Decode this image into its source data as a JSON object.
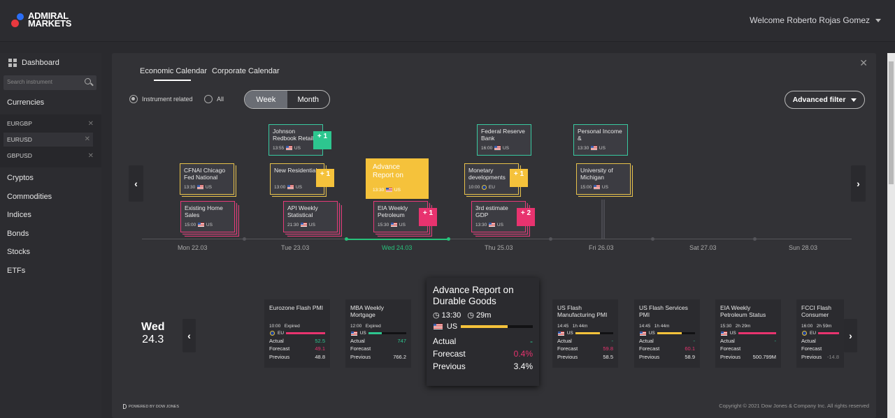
{
  "header": {
    "logo_line1": "ADMIRAL",
    "logo_line2": "MARKETS",
    "welcome": "Welcome Roberto Rojas Gomez"
  },
  "sidebar": {
    "dashboard": "Dashboard",
    "search_placeholder": "Search instrument",
    "currencies": "Currencies",
    "currency_items": [
      "EURGBP",
      "EURUSD",
      "GBPUSD"
    ],
    "categories": [
      "Cryptos",
      "Commodities",
      "Indices",
      "Bonds",
      "Stocks",
      "ETFs"
    ]
  },
  "tabs": [
    "Economic Calendar",
    "Corporate Calendar"
  ],
  "filters": {
    "instrument_related": "Instrument related",
    "all": "All",
    "week": "Week",
    "month": "Month",
    "advanced": "Advanced filter"
  },
  "timeline": {
    "days": [
      "Mon 22.03",
      "Tue 23.03",
      "Wed 24.03",
      "Thu 25.03",
      "Fri 26.03",
      "Sat 27.03",
      "Sun 28.03"
    ],
    "cards": [
      {
        "title": "CFNAI Chicago Fed National",
        "time": "13:30",
        "country": "US"
      },
      {
        "title": "Existing Home Sales",
        "time": "15:00",
        "country": "US"
      },
      {
        "title": "Johnson Redbook Retail",
        "time": "13:55",
        "country": "US"
      },
      {
        "title": "New Residential",
        "time": "13:00",
        "country": "US"
      },
      {
        "title": "API Weekly Statistical",
        "time": "21:30",
        "country": "US"
      },
      {
        "title": "Advance Report on",
        "time": "13:30",
        "country": "US"
      },
      {
        "title": "EIA Weekly Petroleum",
        "time": "15:30",
        "country": "US"
      },
      {
        "title": "Federal Reserve Bank",
        "time": "16:00",
        "country": "US"
      },
      {
        "title": "Monetary developments",
        "time": "10:00",
        "country": "EU"
      },
      {
        "title": "3rd estimate GDP",
        "time": "13:30",
        "country": "US"
      },
      {
        "title": "Personal Income &",
        "time": "13:30",
        "country": "US"
      },
      {
        "title": "University of Michigan",
        "time": "15:00",
        "country": "US"
      }
    ],
    "badges": [
      "+ 1",
      "+ 1",
      "+ 1",
      "+ 1",
      "+ 1",
      "+ 2"
    ]
  },
  "selected_day": {
    "weekday": "Wed",
    "date": "24.3"
  },
  "events": [
    {
      "title": "Eurozone Flash PMI",
      "time": "10:00",
      "status": "Expired",
      "country": "EU",
      "actual": "52.5",
      "forecast": "49.1",
      "previous": "48.8"
    },
    {
      "title": "MBA Weekly Mortgage",
      "time": "12:00",
      "status": "Expired",
      "country": "US",
      "actual": "747",
      "forecast": "",
      "previous": "766.2"
    },
    {
      "title": "US Flash Manufacturing PMI",
      "time": "14:45",
      "status": "1h 44m",
      "country": "US",
      "actual": "-",
      "forecast": "59.8",
      "previous": "58.5"
    },
    {
      "title": "US Flash Services PMI",
      "time": "14:45",
      "status": "1h 44m",
      "country": "US",
      "actual": "-",
      "forecast": "60.1",
      "previous": "58.9"
    },
    {
      "title": "EIA Weekly Petroleum Status",
      "time": "15:30",
      "status": "2h 29m",
      "country": "US",
      "actual": "-",
      "forecast": "",
      "previous": "500.799M"
    },
    {
      "title": "FCCI Flash Consumer",
      "time": "16:00",
      "status": "2h 59m",
      "country": "EU",
      "actual": "",
      "forecast": "",
      "previous": "-14.8"
    }
  ],
  "featured": {
    "title": "Advance Report on Durable Goods",
    "time": "13:30",
    "countdown": "29m",
    "country": "US",
    "actual_label": "Actual",
    "actual": "-",
    "forecast_label": "Forecast",
    "forecast": "0.4%",
    "previous_label": "Previous",
    "previous": "3.4%"
  },
  "labels": {
    "actual": "Actual",
    "forecast": "Forecast",
    "previous": "Previous"
  },
  "footer": {
    "powered": "POWERED BY DOW JONES",
    "copyright": "Copyright © 2021 Dow Jones & Company Inc. All rights reserved"
  }
}
